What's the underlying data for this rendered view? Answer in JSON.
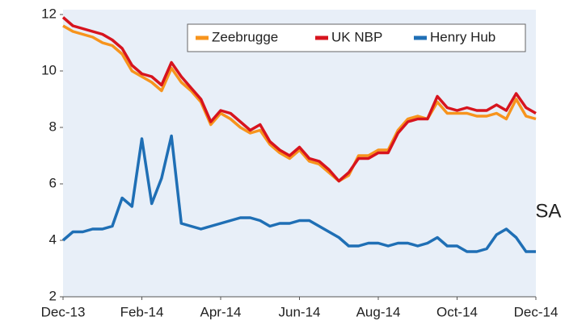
{
  "chart_data": {
    "type": "line",
    "categories": [
      "Dec-13",
      null,
      null,
      null,
      null,
      null,
      null,
      null,
      "Feb-14",
      null,
      null,
      null,
      null,
      null,
      null,
      null,
      "Apr-14",
      null,
      null,
      null,
      null,
      null,
      null,
      null,
      "Jun-14",
      null,
      null,
      null,
      null,
      null,
      null,
      null,
      "Aug-14",
      null,
      null,
      null,
      null,
      null,
      null,
      null,
      "Oct-14",
      null,
      null,
      null,
      null,
      null,
      null,
      null,
      "Dec-14"
    ],
    "series": [
      {
        "name": "Zeebrugge",
        "color": "#f7941d",
        "values": [
          11.6,
          11.4,
          11.3,
          11.2,
          11.0,
          10.9,
          10.6,
          10.0,
          9.8,
          9.6,
          9.3,
          10.1,
          9.6,
          9.3,
          8.9,
          8.1,
          8.5,
          8.3,
          8.0,
          7.8,
          7.9,
          7.4,
          7.1,
          6.9,
          7.2,
          6.8,
          6.7,
          6.4,
          6.1,
          6.3,
          7.0,
          7.0,
          7.2,
          7.2,
          7.9,
          8.3,
          8.4,
          8.3,
          8.9,
          8.5,
          8.5,
          8.5,
          8.4,
          8.4,
          8.5,
          8.3,
          9.0,
          8.4,
          8.3
        ]
      },
      {
        "name": "UK NBP",
        "color": "#d7141e",
        "values": [
          11.9,
          11.6,
          11.5,
          11.4,
          11.3,
          11.1,
          10.8,
          10.2,
          9.9,
          9.8,
          9.5,
          10.3,
          9.8,
          9.4,
          9.0,
          8.2,
          8.6,
          8.5,
          8.2,
          7.9,
          8.1,
          7.5,
          7.2,
          7.0,
          7.3,
          6.9,
          6.8,
          6.5,
          6.1,
          6.4,
          6.9,
          6.9,
          7.1,
          7.1,
          7.8,
          8.2,
          8.3,
          8.3,
          9.1,
          8.7,
          8.6,
          8.7,
          8.6,
          8.6,
          8.8,
          8.6,
          9.2,
          8.7,
          8.5
        ]
      },
      {
        "name": "Henry Hub",
        "color": "#1f6fb5",
        "values": [
          4.0,
          4.3,
          4.3,
          4.4,
          4.4,
          4.5,
          5.5,
          5.2,
          7.6,
          5.3,
          6.2,
          7.7,
          4.6,
          4.5,
          4.4,
          4.5,
          4.6,
          4.7,
          4.8,
          4.8,
          4.7,
          4.5,
          4.6,
          4.6,
          4.7,
          4.7,
          4.5,
          4.3,
          4.1,
          3.8,
          3.8,
          3.9,
          3.9,
          3.8,
          3.9,
          3.9,
          3.8,
          3.9,
          4.1,
          3.8,
          3.8,
          3.6,
          3.6,
          3.7,
          4.2,
          4.4,
          4.1,
          3.6,
          3.6
        ]
      }
    ],
    "ylim": [
      2,
      12
    ],
    "yticks": [
      2,
      4,
      6,
      8,
      10,
      12
    ],
    "legend": "upper right",
    "annotations": [
      "USA"
    ]
  }
}
